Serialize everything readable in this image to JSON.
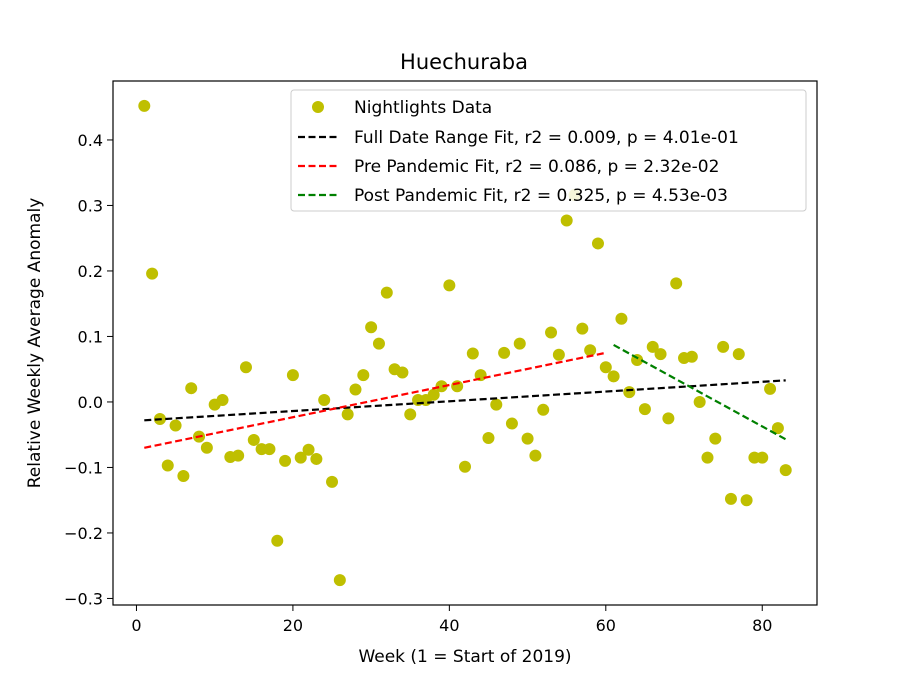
{
  "chart_data": {
    "type": "scatter",
    "title": "Huechuraba",
    "xlabel": "Week (1 = Start of 2019)",
    "ylabel": "Relative Weekly Average Anomaly",
    "xlim": [
      -3,
      87
    ],
    "ylim": [
      -0.31,
      0.49
    ],
    "xticks": [
      0,
      20,
      40,
      60,
      80
    ],
    "yticks": [
      -0.3,
      -0.2,
      -0.1,
      0.0,
      0.1,
      0.2,
      0.3,
      0.4
    ],
    "xtick_labels": [
      "0",
      "20",
      "40",
      "60",
      "80"
    ],
    "ytick_labels": [
      "−0.3",
      "−0.2",
      "−0.1",
      "0.0",
      "0.1",
      "0.2",
      "0.3",
      "0.4"
    ],
    "grid": false,
    "legend_position": "top-right",
    "legend": [
      {
        "label": "Nightlights Data",
        "kind": "marker",
        "color": "#bfbf00"
      },
      {
        "label": "Full Date Range Fit, r2 = 0.009, p = 4.01e-01",
        "kind": "line",
        "color": "#000000"
      },
      {
        "label": "Pre Pandemic Fit, r2 = 0.086, p = 2.32e-02",
        "kind": "line",
        "color": "#ff0000"
      },
      {
        "label": "Post Pandemic Fit, r2 = 0.325, p = 4.53e-03",
        "kind": "line",
        "color": "#008000"
      }
    ],
    "series": [
      {
        "name": "Nightlights Data",
        "type": "scatter",
        "color": "#bfbf00",
        "points": [
          [
            1,
            0.452
          ],
          [
            2,
            0.196
          ],
          [
            3,
            -0.026
          ],
          [
            4,
            -0.097
          ],
          [
            5,
            -0.036
          ],
          [
            6,
            -0.113
          ],
          [
            7,
            0.021
          ],
          [
            8,
            -0.053
          ],
          [
            9,
            -0.07
          ],
          [
            10,
            -0.004
          ],
          [
            11,
            0.003
          ],
          [
            12,
            -0.084
          ],
          [
            13,
            -0.082
          ],
          [
            14,
            0.053
          ],
          [
            15,
            -0.058
          ],
          [
            16,
            -0.072
          ],
          [
            17,
            -0.072
          ],
          [
            18,
            -0.212
          ],
          [
            19,
            -0.09
          ],
          [
            20,
            0.041
          ],
          [
            21,
            -0.085
          ],
          [
            22,
            -0.073
          ],
          [
            23,
            -0.087
          ],
          [
            24,
            0.003
          ],
          [
            25,
            -0.122
          ],
          [
            26,
            -0.272
          ],
          [
            27,
            -0.019
          ],
          [
            28,
            0.019
          ],
          [
            29,
            0.041
          ],
          [
            30,
            0.114
          ],
          [
            31,
            0.089
          ],
          [
            32,
            0.167
          ],
          [
            33,
            0.05
          ],
          [
            34,
            0.045
          ],
          [
            35,
            -0.019
          ],
          [
            36,
            0.003
          ],
          [
            37,
            0.003
          ],
          [
            38,
            0.011
          ],
          [
            39,
            0.024
          ],
          [
            40,
            0.178
          ],
          [
            41,
            0.024
          ],
          [
            42,
            -0.099
          ],
          [
            43,
            0.074
          ],
          [
            44,
            0.041
          ],
          [
            45,
            -0.055
          ],
          [
            46,
            -0.004
          ],
          [
            47,
            0.075
          ],
          [
            48,
            -0.033
          ],
          [
            49,
            0.089
          ],
          [
            50,
            -0.056
          ],
          [
            51,
            -0.082
          ],
          [
            52,
            -0.012
          ],
          [
            53,
            0.106
          ],
          [
            54,
            0.072
          ],
          [
            55,
            0.277
          ],
          [
            56,
            0.316
          ],
          [
            57,
            0.112
          ],
          [
            58,
            0.079
          ],
          [
            59,
            0.242
          ],
          [
            60,
            0.053
          ],
          [
            61,
            0.039
          ],
          [
            62,
            0.127
          ],
          [
            63,
            0.015
          ],
          [
            64,
            0.064
          ],
          [
            65,
            -0.011
          ],
          [
            66,
            0.084
          ],
          [
            67,
            0.073
          ],
          [
            68,
            -0.025
          ],
          [
            69,
            0.181
          ],
          [
            70,
            0.067
          ],
          [
            71,
            0.069
          ],
          [
            72,
            0.0
          ],
          [
            73,
            -0.085
          ],
          [
            74,
            -0.056
          ],
          [
            75,
            0.084
          ],
          [
            76,
            -0.148
          ],
          [
            77,
            0.073
          ],
          [
            78,
            -0.15
          ],
          [
            79,
            -0.085
          ],
          [
            80,
            -0.085
          ],
          [
            81,
            0.02
          ],
          [
            82,
            -0.04
          ],
          [
            83,
            -0.104
          ]
        ]
      },
      {
        "name": "Full Date Range Fit, r2 = 0.009, p = 4.01e-01",
        "type": "line",
        "color": "#000000",
        "dash": true,
        "x": [
          1,
          83
        ],
        "y": [
          -0.028,
          0.033
        ]
      },
      {
        "name": "Pre Pandemic Fit, r2 = 0.086, p = 2.32e-02",
        "type": "line",
        "color": "#ff0000",
        "dash": true,
        "x": [
          1,
          60
        ],
        "y": [
          -0.07,
          0.075
        ]
      },
      {
        "name": "Post Pandemic Fit, r2 = 0.325, p = 4.53e-03",
        "type": "line",
        "color": "#008000",
        "dash": true,
        "x": [
          61,
          83
        ],
        "y": [
          0.087,
          -0.057
        ]
      }
    ]
  }
}
